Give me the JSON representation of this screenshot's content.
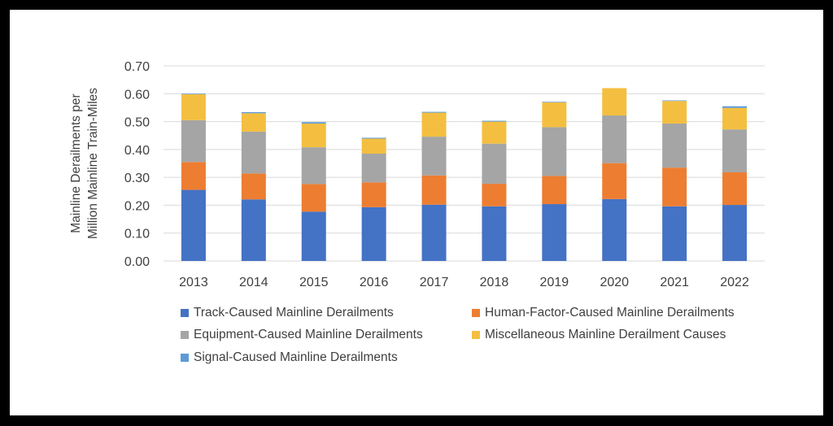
{
  "chart_data": {
    "type": "bar",
    "stacked": true,
    "title": "",
    "xlabel": "",
    "ylabel": [
      "Mainline Derailments per",
      "Million Mainline Train-Miles"
    ],
    "ylim": [
      0,
      0.7
    ],
    "yticks": [
      "0.00",
      "0.10",
      "0.20",
      "0.30",
      "0.40",
      "0.50",
      "0.60",
      "0.70"
    ],
    "ytick_values": [
      0,
      0.1,
      0.2,
      0.3,
      0.4,
      0.5,
      0.6,
      0.7
    ],
    "grid": true,
    "legend_position": "bottom",
    "categories": [
      "2013",
      "2014",
      "2015",
      "2016",
      "2017",
      "2018",
      "2019",
      "2020",
      "2021",
      "2022"
    ],
    "series": [
      {
        "name": "Track-Caused Mainline Derailments",
        "color": "#4472C4",
        "values": [
          0.255,
          0.221,
          0.177,
          0.193,
          0.202,
          0.196,
          0.204,
          0.222,
          0.196,
          0.201
        ]
      },
      {
        "name": "Human-Factor-Caused Mainline Derailments",
        "color": "#ED7D31",
        "values": [
          0.1,
          0.093,
          0.099,
          0.089,
          0.105,
          0.081,
          0.101,
          0.129,
          0.139,
          0.117
        ]
      },
      {
        "name": "Equipment-Caused Mainline Derailments",
        "color": "#A5A5A5",
        "values": [
          0.15,
          0.15,
          0.132,
          0.103,
          0.139,
          0.144,
          0.175,
          0.171,
          0.158,
          0.154
        ]
      },
      {
        "name": "Miscellaneous Mainline Derailment Causes",
        "color": "#F4BF40",
        "values": [
          0.093,
          0.066,
          0.085,
          0.054,
          0.086,
          0.079,
          0.089,
          0.098,
          0.081,
          0.077
        ]
      },
      {
        "name": "Signal-Caused Mainline Derailments",
        "color": "#5B9BD5",
        "values": [
          0.002,
          0.004,
          0.005,
          0.003,
          0.003,
          0.003,
          0.002,
          0.0,
          0.002,
          0.006
        ]
      }
    ],
    "legend_order": [
      0,
      1,
      2,
      3,
      4
    ]
  }
}
